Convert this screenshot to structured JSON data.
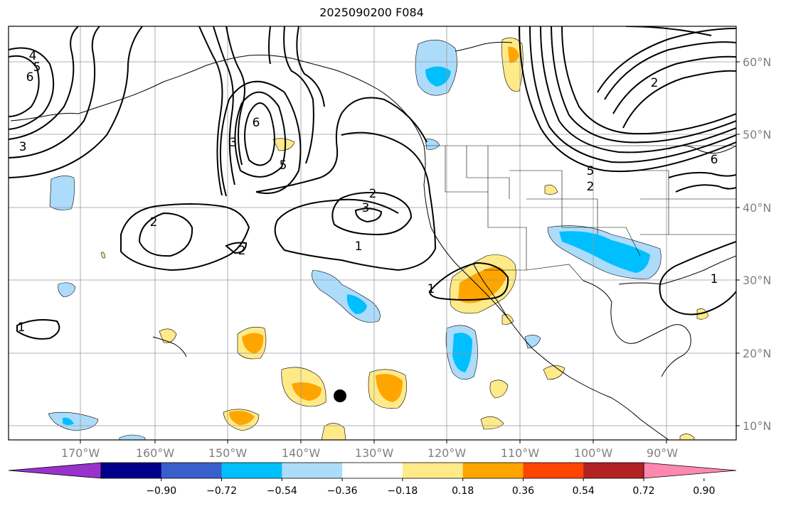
{
  "title": "2025090200 F084",
  "lon_ticks": [
    "170°W",
    "160°W",
    "150°W",
    "140°W",
    "130°W",
    "120°W",
    "110°W",
    "100°W",
    "90°W"
  ],
  "lat_ticks": [
    "60°N",
    "50°N",
    "40°N",
    "30°N",
    "20°N",
    "10°N"
  ],
  "colorbar": {
    "tick_labels": [
      "−0.90",
      "−0.72",
      "−0.54",
      "−0.36",
      "−0.18",
      "0.18",
      "0.36",
      "0.54",
      "0.72",
      "0.90"
    ],
    "colors": [
      "#9932CC",
      "#00008B",
      "#3A5FCD",
      "#00BFFF",
      "#ADDCFA",
      "#FFFFFF",
      "#FFEA8A",
      "#FFA500",
      "#FF4500",
      "#B22222",
      "#FF88B0"
    ]
  },
  "contour_labels": [
    "4",
    "5",
    "6",
    "3",
    "6",
    "3",
    "5",
    "2",
    "3",
    "2",
    "2",
    "1",
    "1",
    "1",
    "5",
    "2",
    "1",
    "6",
    "2"
  ],
  "marker": "storm-position-dot"
}
